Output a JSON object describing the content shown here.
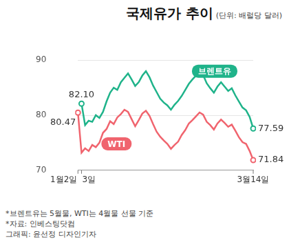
{
  "chart_data": {
    "type": "line",
    "title": "국제유가 추이",
    "subtitle": "(단위: 배럴당 달러)",
    "categories": [
      "1월2일",
      "3일",
      null,
      null,
      null,
      null,
      null,
      null,
      null,
      null,
      null,
      null,
      null,
      null,
      null,
      null,
      null,
      null,
      null,
      null,
      null,
      null,
      null,
      null,
      null,
      null,
      null,
      null,
      null,
      null,
      null,
      null,
      null,
      null,
      null,
      null,
      null,
      null,
      null,
      null,
      null,
      null,
      null,
      null,
      null,
      null,
      null,
      null,
      null,
      "3월14일"
    ],
    "series": [
      {
        "name": "브렌트유",
        "color": "#1fb38a",
        "marker": "circle",
        "values": [
          null,
          82.1,
          78.2,
          79.0,
          78.8,
          80.0,
          79.5,
          80.6,
          82.5,
          84.1,
          85.0,
          84.6,
          86.0,
          86.8,
          87.6,
          86.5,
          85.3,
          86.0,
          87.2,
          88.0,
          86.9,
          85.4,
          84.2,
          83.0,
          82.3,
          81.8,
          81.0,
          81.9,
          82.6,
          83.5,
          84.6,
          85.7,
          86.5,
          87.2,
          87.9,
          87.3,
          85.8,
          84.9,
          84.1,
          85.2,
          86.0,
          85.2,
          84.4,
          84.9,
          83.6,
          82.5,
          81.4,
          80.9,
          79.7,
          77.59
        ],
        "value_labels": [
          null,
          "82.10",
          null,
          null,
          null,
          null,
          null,
          null,
          null,
          null,
          null,
          null,
          null,
          null,
          null,
          null,
          null,
          null,
          null,
          null,
          null,
          null,
          null,
          null,
          null,
          null,
          null,
          null,
          null,
          null,
          null,
          null,
          null,
          null,
          null,
          null,
          null,
          null,
          null,
          null,
          null,
          null,
          null,
          null,
          null,
          null,
          null,
          null,
          null,
          "77.59"
        ]
      },
      {
        "name": "WTI",
        "color": "#f0646e",
        "marker": "circle",
        "values": [
          80.47,
          73.2,
          74.0,
          73.5,
          74.6,
          74.2,
          75.0,
          76.8,
          77.5,
          78.9,
          78.4,
          79.6,
          80.2,
          81.0,
          80.6,
          79.3,
          78.0,
          79.1,
          80.3,
          80.8,
          79.9,
          78.4,
          77.0,
          76.1,
          75.4,
          74.8,
          73.9,
          74.6,
          75.2,
          76.4,
          77.3,
          78.5,
          79.1,
          79.8,
          80.5,
          80.1,
          78.8,
          78.2,
          77.4,
          78.5,
          79.2,
          78.6,
          77.9,
          78.3,
          77.2,
          76.0,
          75.1,
          74.8,
          73.5,
          71.84
        ],
        "value_labels": [
          "80.47",
          null,
          null,
          null,
          null,
          null,
          null,
          null,
          null,
          null,
          null,
          null,
          null,
          null,
          null,
          null,
          null,
          null,
          null,
          null,
          null,
          null,
          null,
          null,
          null,
          null,
          null,
          null,
          null,
          null,
          null,
          null,
          null,
          null,
          null,
          null,
          null,
          null,
          null,
          null,
          null,
          null,
          null,
          null,
          null,
          null,
          null,
          null,
          null,
          "71.84"
        ]
      }
    ],
    "ylim": [
      70,
      90
    ],
    "yticks": [
      70,
      80,
      90
    ],
    "grid": true,
    "footnotes": [
      "*브렌트유는 5월물, WTI는 4월물 선물 기준",
      "*자료: 인베스팅닷컴",
      "그래픽: 윤선정 디자인기자"
    ]
  }
}
